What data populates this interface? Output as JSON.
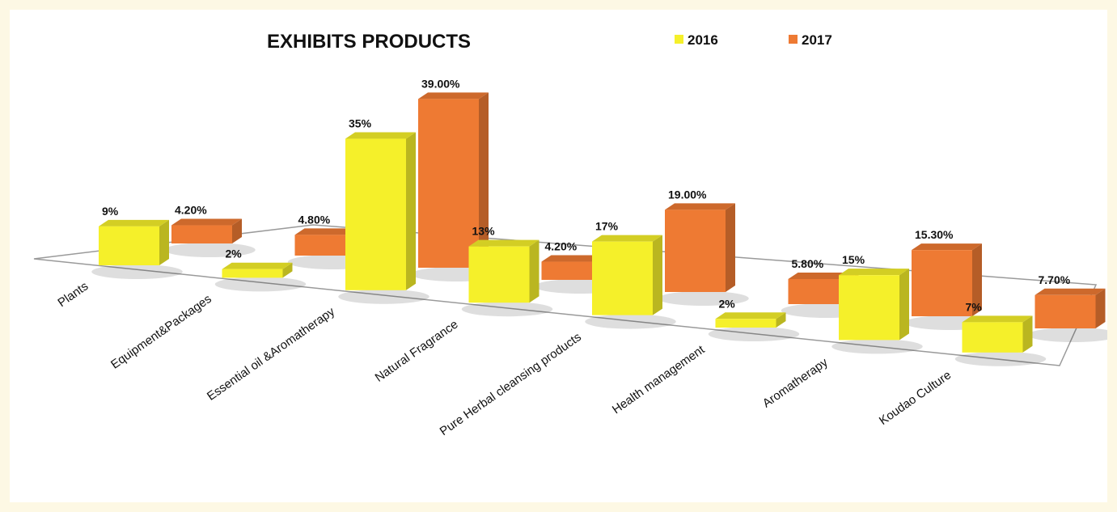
{
  "chart_data": {
    "type": "bar",
    "title": "EXHIBITS PRODUCTS",
    "categories": [
      "Plants",
      "Equipment&Packages",
      "Essential oil &Aromatherapy",
      "Natural Fragrance",
      "Pure Herbal cleansing products",
      "Health management",
      "Aromatherapy",
      "Koudao Culture"
    ],
    "series": [
      {
        "name": "2016",
        "color": "#f5f02a",
        "values": [
          9,
          2,
          35,
          13,
          17,
          2,
          15,
          7
        ],
        "labels": [
          "9%",
          "2%",
          "35%",
          "13%",
          "17%",
          "2%",
          "15%",
          "7%"
        ]
      },
      {
        "name": "2017",
        "color": "#ee7a33",
        "values": [
          4.2,
          4.8,
          39.0,
          4.2,
          19.0,
          5.8,
          15.3,
          7.7
        ],
        "labels": [
          "4.20%",
          "4.80%",
          "39.00%",
          "4.20%",
          "19.00%",
          "5.80%",
          "15.30%",
          "7.70%"
        ]
      }
    ],
    "legend_position": "top",
    "ylim": [
      0,
      40
    ],
    "grid": false
  }
}
